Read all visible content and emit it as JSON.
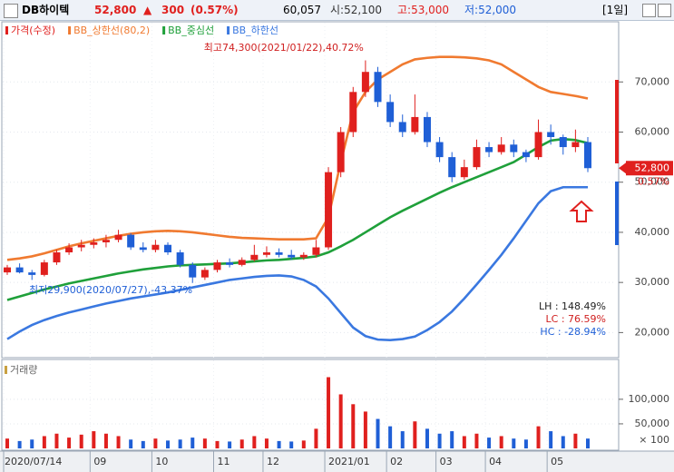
{
  "header": {
    "name": "DB하이텍",
    "price": "52,800",
    "arrow": "▲",
    "change": "300",
    "change_pct": "(0.57%)",
    "volume": "60,057",
    "open": "시:52,100",
    "high": "고:53,000",
    "low": "저:52,000",
    "period": "[1일]"
  },
  "chart_data": [
    {
      "type": "candlestick",
      "name": "가격(수정)",
      "up_color": "#e0201e",
      "down_color": "#1f5fd6",
      "categories": [
        "2020/07/14",
        null,
        null,
        null,
        null,
        null,
        null,
        "09",
        null,
        null,
        null,
        null,
        "10",
        null,
        null,
        null,
        null,
        "11",
        null,
        null,
        null,
        "12",
        null,
        null,
        null,
        null,
        "2021/01",
        null,
        null,
        null,
        null,
        "02",
        null,
        null,
        null,
        "03",
        null,
        null,
        null,
        "04",
        null,
        null,
        null,
        null,
        "05",
        null,
        null,
        null
      ],
      "open": [
        32000,
        33000,
        32000,
        31500,
        34000,
        36000,
        37000,
        37500,
        38000,
        38500,
        39500,
        37000,
        36500,
        37500,
        36000,
        33500,
        31000,
        32500,
        34000,
        33500,
        34500,
        35500,
        36000,
        35500,
        35000,
        35500,
        37000,
        52000,
        60000,
        68000,
        72000,
        66000,
        62000,
        60000,
        63000,
        58000,
        55000,
        51000,
        53000,
        57000,
        56000,
        57500,
        56000,
        55000,
        60000,
        59000,
        57000,
        58000
      ],
      "high": [
        33500,
        33800,
        32500,
        34500,
        36500,
        37800,
        38500,
        38800,
        39500,
        40500,
        39800,
        38000,
        38500,
        38000,
        36500,
        34000,
        33000,
        34500,
        34800,
        35000,
        37500,
        37200,
        36800,
        36500,
        36000,
        38500,
        53000,
        61000,
        69000,
        74300,
        73000,
        67500,
        63500,
        67500,
        64000,
        59000,
        56000,
        54500,
        58500,
        58000,
        59000,
        58500,
        56500,
        62500,
        61500,
        59500,
        60500,
        59000
      ],
      "low": [
        31500,
        31800,
        30500,
        31200,
        33500,
        35500,
        36200,
        36800,
        37000,
        38000,
        36500,
        36000,
        36000,
        35500,
        33000,
        29900,
        30500,
        32000,
        33000,
        33200,
        34200,
        35000,
        35000,
        34500,
        34500,
        35000,
        36500,
        51000,
        59000,
        67000,
        65000,
        61000,
        59000,
        59500,
        57000,
        54000,
        50000,
        50500,
        52500,
        55000,
        55500,
        55000,
        54000,
        54500,
        57500,
        55500,
        56000,
        52000
      ],
      "close": [
        33000,
        32000,
        31500,
        34000,
        36000,
        37000,
        37500,
        38000,
        38500,
        39500,
        37000,
        36500,
        37500,
        36000,
        33500,
        31000,
        32500,
        34000,
        33500,
        34500,
        35500,
        36000,
        35500,
        35000,
        35500,
        37000,
        52000,
        60000,
        68000,
        72000,
        66000,
        62000,
        60000,
        63000,
        58000,
        55000,
        51000,
        53000,
        57000,
        56000,
        57500,
        56000,
        55000,
        60000,
        59000,
        57000,
        58000,
        52800
      ],
      "series": [
        {
          "name": "BB_상한선(80,2)",
          "color": "#f07a30",
          "values": [
            34500,
            34800,
            35200,
            35800,
            36500,
            37200,
            37800,
            38300,
            38800,
            39300,
            39700,
            40000,
            40200,
            40300,
            40200,
            40000,
            39700,
            39400,
            39100,
            38900,
            38800,
            38700,
            38600,
            38600,
            38600,
            38800,
            43000,
            54000,
            64000,
            68000,
            70500,
            72000,
            73500,
            74500,
            74800,
            75000,
            75000,
            74900,
            74700,
            74300,
            73500,
            72000,
            70500,
            69000,
            68000,
            67600,
            67200,
            66700
          ]
        },
        {
          "name": "BB_중심선",
          "color": "#1fa03a",
          "values": [
            26500,
            27200,
            27900,
            28600,
            29200,
            29800,
            30300,
            30800,
            31300,
            31800,
            32200,
            32600,
            32900,
            33200,
            33400,
            33500,
            33600,
            33700,
            33800,
            34000,
            34200,
            34400,
            34500,
            34700,
            34900,
            35200,
            36000,
            37200,
            38500,
            40000,
            41500,
            43000,
            44300,
            45500,
            46700,
            47900,
            49000,
            50000,
            51000,
            52000,
            53000,
            54000,
            55500,
            57000,
            58300,
            58600,
            58400,
            57800
          ]
        },
        {
          "name": "BB_하한선",
          "color": "#3a78e0",
          "values": [
            18700,
            20200,
            21500,
            22500,
            23300,
            24000,
            24600,
            25200,
            25800,
            26300,
            26800,
            27200,
            27600,
            28000,
            28500,
            29000,
            29500,
            30000,
            30500,
            30800,
            31100,
            31300,
            31400,
            31200,
            30500,
            29200,
            26800,
            23900,
            21000,
            19300,
            18600,
            18500,
            18700,
            19200,
            20500,
            22100,
            24200,
            26800,
            29600,
            32500,
            35500,
            38800,
            42300,
            45800,
            48200,
            49000,
            49000,
            49000
          ]
        }
      ],
      "ylim": [
        15000,
        82000
      ],
      "yticks": [
        {
          "value": 20000,
          "label": "20,000"
        },
        {
          "value": 30000,
          "label": "30,000"
        },
        {
          "value": 40000,
          "label": "40,000"
        },
        {
          "value": 50000,
          "label": "50,000"
        },
        {
          "value": 60000,
          "label": "60,000"
        },
        {
          "value": 70000,
          "label": "70,000"
        }
      ],
      "annotations": [
        "최고74,300(2021/01/22),40.72%",
        "최저29,900(2020/07/27),-43.37%"
      ],
      "stats": [
        "LH : 148.49%",
        "LC :  76.59%",
        "HC : -28.94%"
      ],
      "last_label": "52,800",
      "last_change": "0.57%"
    },
    {
      "type": "bar",
      "title": "거래량",
      "unit_label": "× 100",
      "values": [
        20000,
        15000,
        18000,
        25000,
        30000,
        22000,
        28000,
        35000,
        30000,
        25000,
        18000,
        15000,
        20000,
        16000,
        18000,
        22000,
        20000,
        15000,
        14000,
        18000,
        25000,
        20000,
        15000,
        14000,
        16000,
        40000,
        145000,
        110000,
        90000,
        75000,
        60000,
        45000,
        35000,
        55000,
        40000,
        30000,
        35000,
        25000,
        30000,
        22000,
        25000,
        20000,
        18000,
        45000,
        35000,
        25000,
        30000,
        20000
      ],
      "ylim": [
        0,
        170000
      ],
      "yticks": [
        {
          "value": 50000,
          "label": "50,000"
        },
        {
          "value": 100000,
          "label": "100,000"
        }
      ]
    }
  ]
}
